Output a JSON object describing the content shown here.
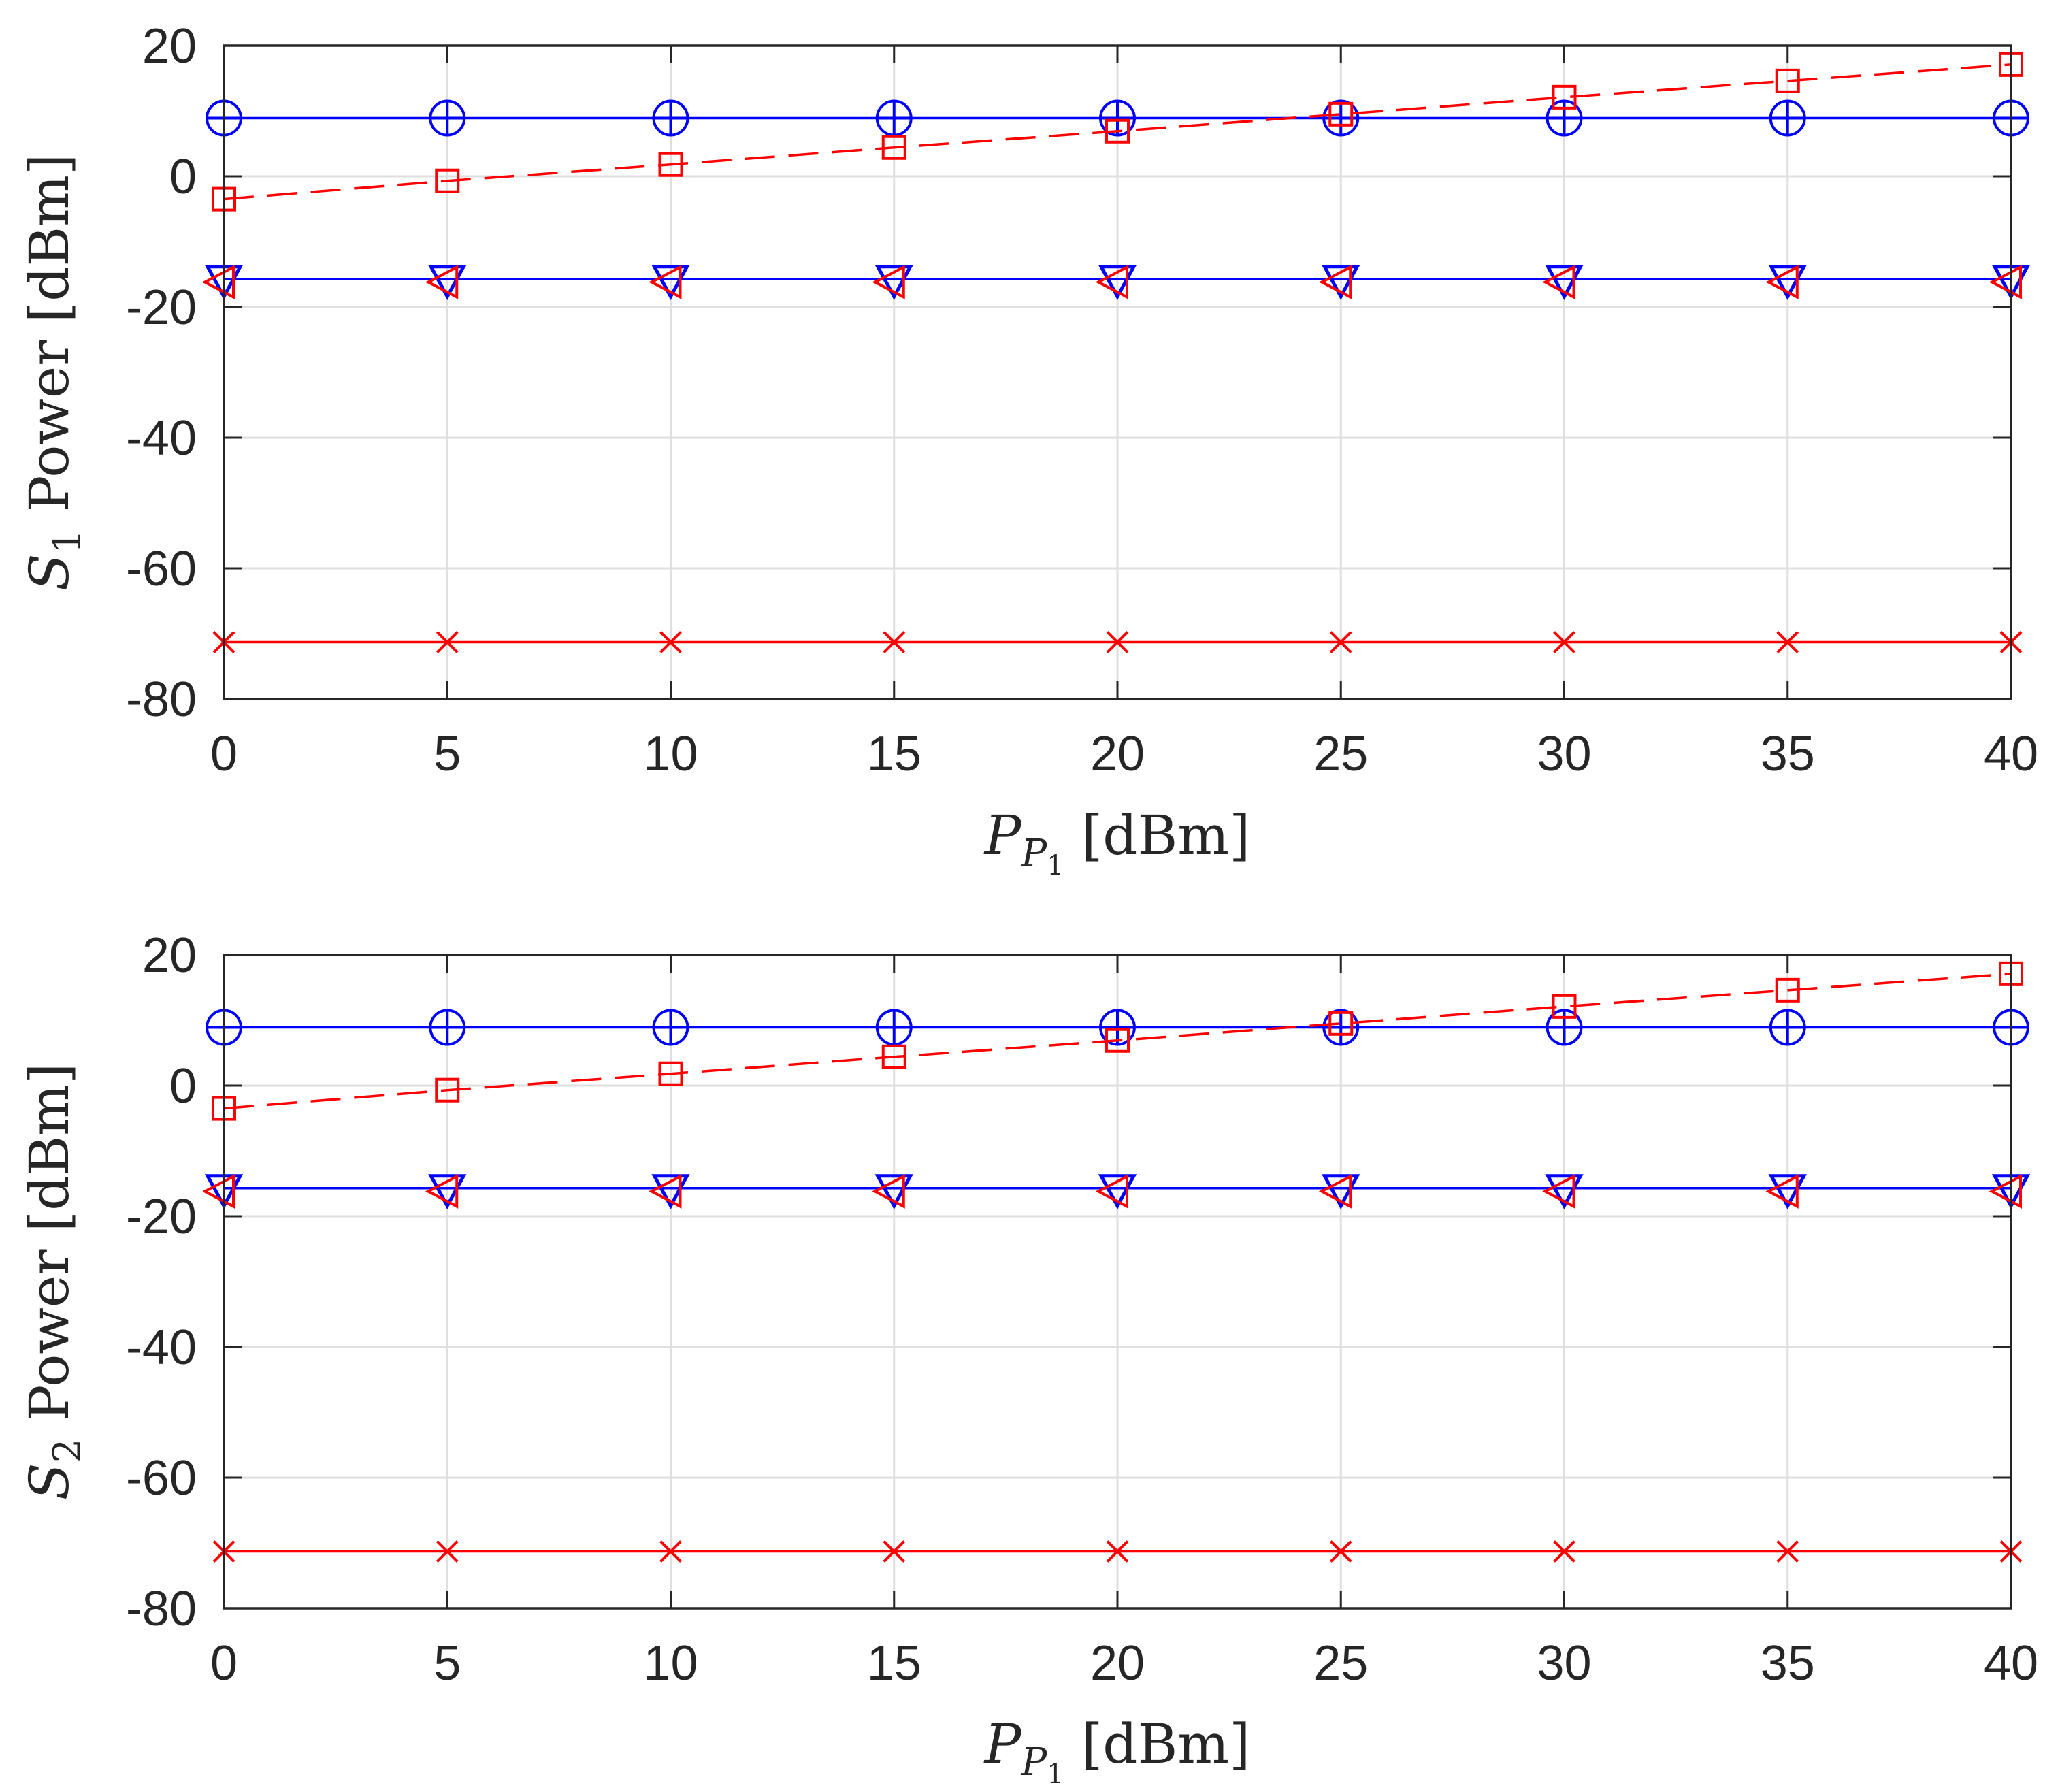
{
  "chart_data": [
    {
      "type": "line",
      "title": "",
      "xlabel": {
        "symbol": "P",
        "sub": "P",
        "subsub": "1",
        "unit": "[dBm]"
      },
      "ylabel": {
        "symbol": "S",
        "sub": "1",
        "rest": "Power [dBm]"
      },
      "xlim": [
        0,
        40
      ],
      "ylim": [
        -80,
        20
      ],
      "xticks": [
        "0",
        "5",
        "10",
        "15",
        "20",
        "25",
        "30",
        "35",
        "40"
      ],
      "yticks": [
        "20",
        "0",
        "-20",
        "-40",
        "-60",
        "-80"
      ],
      "grid": true,
      "x": [
        0,
        5,
        10,
        15,
        20,
        25,
        30,
        35,
        40
      ],
      "series": [
        {
          "name": "circle-blue",
          "color": "#0000ff",
          "line": "solid",
          "marker": "circle-plus",
          "values": [
            8.9,
            8.9,
            8.9,
            8.9,
            8.9,
            8.9,
            8.9,
            8.9,
            8.9
          ]
        },
        {
          "name": "square-red",
          "color": "#ff0000",
          "line": "dashed",
          "marker": "square",
          "values": [
            -3.5,
            -0.7,
            1.8,
            4.4,
            6.9,
            9.5,
            12.1,
            14.6,
            17.1
          ]
        },
        {
          "name": "triangle-blue",
          "color": "#0000ff",
          "line": "solid",
          "marker": "triangle-down",
          "values": [
            -15.7,
            -15.7,
            -15.7,
            -15.7,
            -15.7,
            -15.7,
            -15.7,
            -15.7,
            -15.7
          ]
        },
        {
          "name": "triangle-red",
          "color": "#ff0000",
          "line": "none",
          "marker": "triangle-left",
          "values": [
            -16.2,
            -16.2,
            -16.2,
            -16.2,
            -16.2,
            -16.2,
            -16.2,
            -16.2,
            -16.2
          ]
        },
        {
          "name": "x-red",
          "color": "#ff0000",
          "line": "solid",
          "marker": "x",
          "values": [
            -71.3,
            -71.3,
            -71.3,
            -71.3,
            -71.3,
            -71.3,
            -71.3,
            -71.3,
            -71.3
          ]
        }
      ]
    },
    {
      "type": "line",
      "title": "",
      "xlabel": {
        "symbol": "P",
        "sub": "P",
        "subsub": "1",
        "unit": "[dBm]"
      },
      "ylabel": {
        "symbol": "S",
        "sub": "2",
        "rest": "Power [dBm]"
      },
      "xlim": [
        0,
        40
      ],
      "ylim": [
        -80,
        20
      ],
      "xticks": [
        "0",
        "5",
        "10",
        "15",
        "20",
        "25",
        "30",
        "35",
        "40"
      ],
      "yticks": [
        "20",
        "0",
        "-20",
        "-40",
        "-60",
        "-80"
      ],
      "grid": true,
      "x": [
        0,
        5,
        10,
        15,
        20,
        25,
        30,
        35,
        40
      ],
      "series": [
        {
          "name": "circle-blue",
          "color": "#0000ff",
          "line": "solid",
          "marker": "circle-plus",
          "values": [
            8.9,
            8.9,
            8.9,
            8.9,
            8.9,
            8.9,
            8.9,
            8.9,
            8.9
          ]
        },
        {
          "name": "square-red",
          "color": "#ff0000",
          "line": "dashed",
          "marker": "square",
          "values": [
            -3.5,
            -0.7,
            1.8,
            4.4,
            6.9,
            9.5,
            12.1,
            14.6,
            17.1
          ]
        },
        {
          "name": "triangle-blue",
          "color": "#0000ff",
          "line": "solid",
          "marker": "triangle-down",
          "values": [
            -15.7,
            -15.7,
            -15.7,
            -15.7,
            -15.7,
            -15.7,
            -15.7,
            -15.7,
            -15.7
          ]
        },
        {
          "name": "triangle-red",
          "color": "#ff0000",
          "line": "none",
          "marker": "triangle-left",
          "values": [
            -16.2,
            -16.2,
            -16.2,
            -16.2,
            -16.2,
            -16.2,
            -16.2,
            -16.2,
            -16.2
          ]
        },
        {
          "name": "x-red",
          "color": "#ff0000",
          "line": "solid",
          "marker": "x",
          "values": [
            -71.3,
            -71.3,
            -71.3,
            -71.3,
            -71.3,
            -71.3,
            -71.3,
            -71.3,
            -71.3
          ]
        }
      ]
    }
  ]
}
